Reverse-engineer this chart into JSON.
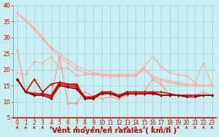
{
  "bg_color": "#c8f0f0",
  "grid_color": "#b0d8d8",
  "xlabel": "Vent moyen/en rafales ( km/h )",
  "xlabel_color": "#cc0000",
  "xlabel_fontsize": 7.5,
  "tick_color": "#cc0000",
  "xlim": [
    -0.5,
    23.5
  ],
  "ylim": [
    5,
    40
  ],
  "yticks": [
    5,
    10,
    15,
    20,
    25,
    30,
    35,
    40
  ],
  "xticks": [
    0,
    1,
    2,
    3,
    4,
    5,
    6,
    7,
    8,
    9,
    10,
    11,
    12,
    13,
    14,
    15,
    16,
    17,
    18,
    19,
    20,
    21,
    22,
    23
  ],
  "lines": [
    {
      "y": [
        37.5,
        35.5,
        33,
        30,
        27,
        25,
        23,
        21,
        20,
        19,
        18.5,
        18,
        18,
        18,
        18,
        20.5,
        18,
        17,
        16.5,
        16,
        15.5,
        15.5,
        15,
        15
      ],
      "color": "#ffaaaa",
      "lw": 0.9,
      "marker": "D",
      "ms": 1.8
    },
    {
      "y": [
        37.5,
        35,
        32.5,
        29.5,
        26.5,
        24,
        22,
        20,
        19,
        18.5,
        18,
        18,
        18,
        18,
        18,
        20,
        17.5,
        16.5,
        16,
        15.5,
        15,
        15,
        15,
        15
      ],
      "color": "#ffaaaa",
      "lw": 0.9,
      "marker": "D",
      "ms": 1.8
    },
    {
      "y": [
        19,
        18.5,
        22.5,
        22,
        24,
        20.5,
        20.5,
        18,
        18.5,
        18.5,
        18.5,
        18.5,
        18.5,
        18.5,
        18.5,
        21,
        24,
        21,
        19,
        18.5,
        18,
        16,
        22,
        15.5
      ],
      "color": "#ffaaaa",
      "lw": 0.9,
      "marker": "D",
      "ms": 1.8
    },
    {
      "y": [
        26,
        13,
        13,
        12,
        12,
        24,
        9.5,
        9.5,
        13,
        11.5,
        11,
        11.5,
        11,
        12,
        13,
        13,
        17,
        15.5,
        12,
        12,
        11.5,
        12,
        13,
        12
      ],
      "color": "#ff9999",
      "lw": 1.0,
      "marker": "D",
      "ms": 2.0
    },
    {
      "y": [
        17,
        13,
        17,
        13,
        15.5,
        16,
        15.5,
        15.5,
        11,
        11.5,
        13,
        13,
        12,
        13,
        13,
        13,
        13,
        13,
        12.5,
        12,
        12,
        12,
        12,
        12
      ],
      "color": "#dd0000",
      "lw": 1.2,
      "marker": "D",
      "ms": 2.0
    },
    {
      "y": [
        17,
        13,
        12.5,
        12.5,
        12,
        16,
        15.5,
        15,
        11.5,
        11.5,
        13,
        13,
        12,
        13,
        13,
        13,
        13,
        12,
        12,
        12,
        12,
        12,
        12,
        12
      ],
      "color": "#dd0000",
      "lw": 1.2,
      "marker": "D",
      "ms": 2.0
    },
    {
      "y": [
        17,
        13,
        12.5,
        12.5,
        11.5,
        15.5,
        15,
        14.5,
        11,
        11,
        13,
        12.5,
        12,
        12.5,
        12.5,
        12.5,
        13,
        12,
        12,
        12,
        12,
        12,
        12,
        12
      ],
      "color": "#dd0000",
      "lw": 1.2,
      "marker": "D",
      "ms": 2.0
    },
    {
      "y": [
        17,
        13,
        12,
        12,
        11,
        15,
        14.5,
        14,
        11,
        11,
        12.5,
        12.5,
        11.5,
        12.5,
        12.5,
        12.5,
        12.5,
        12,
        12,
        12,
        11.5,
        11.5,
        12,
        12
      ],
      "color": "#880000",
      "lw": 1.2,
      "marker": "D",
      "ms": 2.0
    }
  ],
  "arrow_color": "#cc0000"
}
